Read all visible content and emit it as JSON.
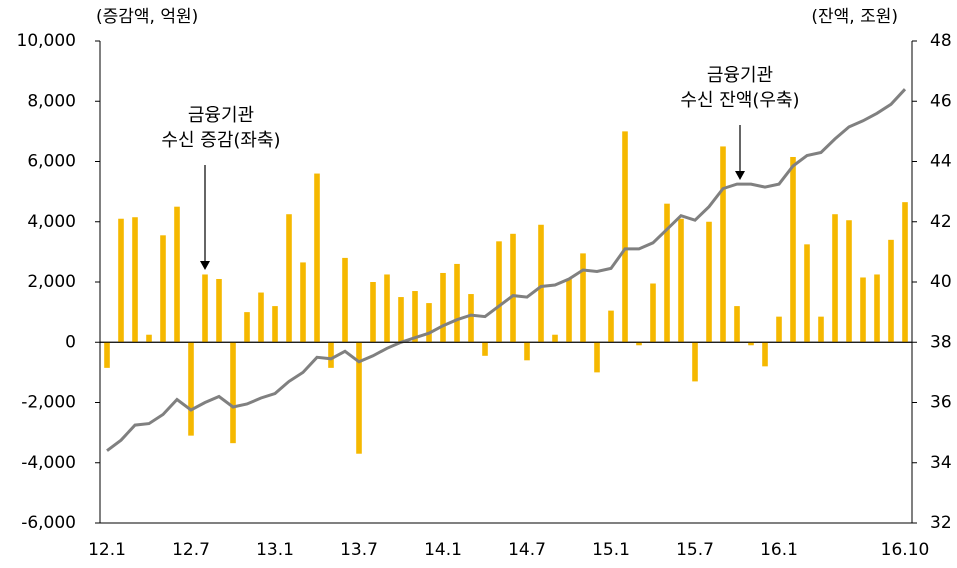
{
  "chart_data": {
    "type": "bar",
    "y_axis_label": "(증감액, 억원)",
    "y2_axis_label": "(잔액, 조원)",
    "categories": [
      "12.1",
      null,
      null,
      null,
      null,
      null,
      "12.7",
      null,
      null,
      null,
      null,
      null,
      "13.1",
      null,
      null,
      null,
      null,
      null,
      "13.7",
      null,
      null,
      null,
      null,
      null,
      "14.1",
      null,
      null,
      null,
      null,
      null,
      "14.7",
      null,
      null,
      null,
      null,
      null,
      "15.1",
      null,
      null,
      null,
      null,
      null,
      "15.7",
      null,
      null,
      null,
      null,
      null,
      "16.1",
      null,
      null,
      null,
      null,
      null,
      null,
      null,
      null,
      "16.10"
    ],
    "series": [
      {
        "name": "금융기관 수신 증감(좌축)",
        "type": "bar",
        "color": "#f5b800",
        "values": [
          -850,
          4100,
          4150,
          250,
          3550,
          4500,
          -3100,
          2250,
          2100,
          -3350,
          1000,
          1650,
          1200,
          4250,
          2650,
          5600,
          -850,
          2800,
          -3700,
          2000,
          2250,
          1500,
          1700,
          1300,
          2300,
          2600,
          1600,
          -450,
          3350,
          3600,
          -600,
          3900,
          250,
          2100,
          2950,
          -1000,
          1050,
          7000,
          -100,
          1950,
          4600,
          4100,
          -1300,
          4000,
          6500,
          1200,
          -100,
          -800,
          850,
          6150,
          3250,
          850,
          4250,
          4050,
          2150,
          2250,
          3400,
          4650
        ]
      },
      {
        "name": "금융기관 수신 잔액(우축)",
        "type": "line",
        "axis": "y2",
        "color": "#808080",
        "values": [
          34.4,
          34.75,
          35.25,
          35.3,
          35.6,
          36.1,
          35.75,
          36.0,
          36.2,
          35.85,
          35.95,
          36.15,
          36.3,
          36.7,
          37.0,
          37.5,
          37.45,
          37.7,
          37.35,
          37.55,
          37.8,
          38.0,
          38.15,
          38.3,
          38.55,
          38.75,
          38.9,
          38.85,
          39.2,
          39.55,
          39.5,
          39.85,
          39.9,
          40.1,
          40.4,
          40.35,
          40.45,
          41.1,
          41.1,
          41.3,
          41.75,
          42.2,
          42.05,
          42.5,
          43.1,
          43.25,
          43.25,
          43.15,
          43.25,
          43.85,
          44.2,
          44.3,
          44.75,
          45.15,
          45.35,
          45.6,
          45.9,
          46.4
        ]
      }
    ],
    "annotations": [
      {
        "lines": [
          "금융기관",
          "수신 증감(좌축)"
        ]
      },
      {
        "lines": [
          "금융기관",
          "수신 잔액(우축)"
        ]
      }
    ],
    "ylim": [
      -6000,
      10000
    ],
    "yticks": [
      {
        "value": -6000,
        "label": "-6,000"
      },
      {
        "value": -4000,
        "label": "-4,000"
      },
      {
        "value": -2000,
        "label": "-2,000"
      },
      0,
      {
        "value": 2000,
        "label": "2,000"
      },
      {
        "value": 4000,
        "label": "4,000"
      },
      {
        "value": 6000,
        "label": "6,000"
      },
      {
        "value": 8000,
        "label": "8,000"
      },
      {
        "value": 10000,
        "label": "10,000"
      }
    ],
    "y2lim": [
      32,
      48
    ],
    "y2ticks": [
      32,
      34,
      36,
      38,
      40,
      42,
      44,
      46,
      48
    ],
    "grid": false
  }
}
